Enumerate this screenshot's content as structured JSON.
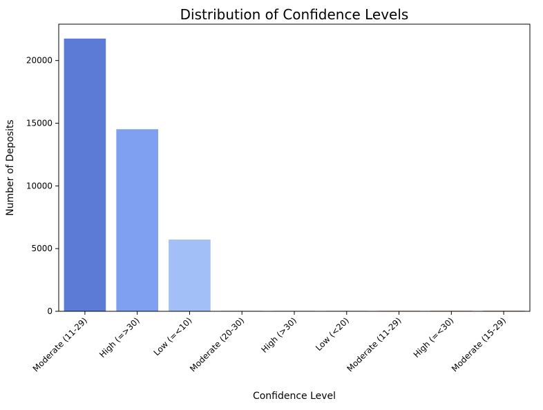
{
  "chart_data": {
    "type": "bar",
    "title": "Distribution of Confidence Levels",
    "xlabel": "Confidence Level",
    "ylabel": "Number of Deposits",
    "categories": [
      "Moderate (11-29)",
      "High (=>30)",
      "Low (=<10)",
      "Moderate (20-30)",
      "High (>30)",
      "Low (<20)",
      "Moderate (11-29)",
      "High (=<30)",
      "Moderate (15-29)"
    ],
    "values": [
      21750,
      14520,
      5720,
      18,
      12,
      10,
      8,
      4,
      2
    ],
    "colors": [
      "#5b7bd6",
      "#7f9ff0",
      "#a3bff8",
      "#c6d6f2",
      "#dcdad8",
      "#edcdbc",
      "#f3b99a",
      "#e8987a",
      "#d4795f"
    ],
    "ylim": [
      0,
      22900
    ],
    "yticks": [
      0,
      5000,
      10000,
      15000,
      20000
    ],
    "ytick_labels": [
      "0",
      "5000",
      "10000",
      "15000",
      "20000"
    ],
    "grid": false,
    "legend": "none"
  }
}
